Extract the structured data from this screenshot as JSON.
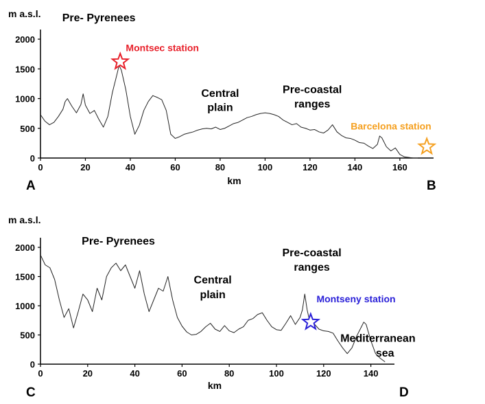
{
  "colors": {
    "montsec": "#e8202a",
    "barcelona": "#f5a020",
    "montseny": "#2a20d8",
    "line": "#222222"
  },
  "chart_data": [
    {
      "type": "line",
      "ylabel": "m a.s.l.",
      "xlabel": "km",
      "corner_left": "A",
      "corner_right": "B",
      "xlim": [
        0,
        175
      ],
      "ylim": [
        0,
        2000
      ],
      "x_ticks": [
        0,
        20,
        40,
        60,
        80,
        100,
        120,
        140,
        160
      ],
      "y_ticks": [
        0,
        500,
        1000,
        1500,
        2000
      ],
      "series": [
        {
          "x": [
            0,
            2,
            4,
            6,
            8,
            10,
            11,
            12,
            14,
            16,
            18,
            19,
            20,
            22,
            24,
            26,
            28,
            30,
            32,
            34,
            35,
            36,
            38,
            40,
            42,
            44,
            46,
            48,
            50,
            52,
            54,
            56,
            58,
            60,
            62,
            64,
            66,
            68,
            70,
            72,
            74,
            76,
            78,
            80,
            82,
            84,
            86,
            88,
            90,
            92,
            94,
            96,
            98,
            100,
            102,
            104,
            106,
            108,
            110,
            112,
            114,
            116,
            118,
            120,
            122,
            124,
            126,
            128,
            130,
            132,
            134,
            136,
            138,
            140,
            142,
            144,
            146,
            148,
            150,
            151,
            152,
            154,
            156,
            158,
            160,
            162,
            164,
            166,
            168
          ],
          "y": [
            730,
            620,
            560,
            600,
            700,
            820,
            950,
            1000,
            870,
            760,
            900,
            1080,
            890,
            750,
            800,
            650,
            520,
            700,
            1100,
            1400,
            1560,
            1480,
            1150,
            700,
            400,
            550,
            800,
            950,
            1050,
            1020,
            980,
            800,
            400,
            330,
            360,
            400,
            420,
            440,
            470,
            490,
            500,
            490,
            520,
            480,
            500,
            540,
            580,
            600,
            640,
            680,
            700,
            730,
            750,
            760,
            750,
            730,
            700,
            640,
            600,
            560,
            580,
            520,
            500,
            470,
            480,
            440,
            420,
            470,
            560,
            440,
            380,
            340,
            330,
            300,
            260,
            250,
            200,
            160,
            230,
            370,
            340,
            190,
            120,
            170,
            60,
            20,
            10,
            0,
            0
          ]
        }
      ],
      "annotations": [
        {
          "text": "Pre- Pyrenees",
          "x": 26,
          "y": 2300
        },
        {
          "text": "Central",
          "x": 80,
          "y": 1030
        },
        {
          "text": "plain",
          "x": 80,
          "y": 790
        },
        {
          "text": "Pre-coastal",
          "x": 121,
          "y": 1090
        },
        {
          "text": "ranges",
          "x": 121,
          "y": 850
        }
      ],
      "stations": [
        {
          "name": "Montsec station",
          "x": 35.5,
          "y": 1620,
          "color_key": "montsec",
          "label_x": 38,
          "label_y": 1800,
          "anchor": "start"
        },
        {
          "name": "Barcelona station",
          "x": 172,
          "y": 190,
          "color_key": "barcelona",
          "label_x": 174,
          "label_y": 480,
          "anchor": "end"
        }
      ]
    },
    {
      "type": "line",
      "ylabel": "m a.s.l.",
      "xlabel": "km",
      "corner_left": "C",
      "corner_right": "D",
      "xlim": [
        0,
        150
      ],
      "ylim": [
        0,
        2000
      ],
      "x_ticks": [
        0,
        20,
        40,
        60,
        80,
        100,
        120,
        140
      ],
      "y_ticks": [
        0,
        500,
        1000,
        1500,
        2000
      ],
      "series": [
        {
          "x": [
            0,
            2,
            4,
            6,
            8,
            10,
            12,
            14,
            16,
            18,
            20,
            22,
            24,
            26,
            28,
            30,
            32,
            34,
            36,
            38,
            40,
            42,
            44,
            46,
            48,
            50,
            52,
            54,
            56,
            58,
            60,
            62,
            64,
            66,
            68,
            70,
            72,
            74,
            76,
            78,
            80,
            82,
            84,
            86,
            88,
            90,
            92,
            94,
            96,
            98,
            100,
            102,
            104,
            106,
            108,
            110,
            111,
            112,
            113,
            114,
            116,
            118,
            120,
            122,
            124,
            126,
            128,
            130,
            132,
            134,
            136,
            137,
            138,
            140,
            142,
            144,
            146
          ],
          "y": [
            1870,
            1700,
            1650,
            1450,
            1100,
            800,
            950,
            620,
            900,
            1200,
            1100,
            900,
            1300,
            1100,
            1500,
            1650,
            1730,
            1600,
            1700,
            1500,
            1300,
            1600,
            1200,
            900,
            1100,
            1300,
            1250,
            1500,
            1100,
            800,
            650,
            550,
            500,
            510,
            560,
            640,
            700,
            600,
            560,
            660,
            570,
            540,
            600,
            640,
            750,
            780,
            850,
            880,
            750,
            640,
            590,
            580,
            700,
            830,
            680,
            800,
            930,
            1200,
            930,
            750,
            690,
            600,
            570,
            560,
            530,
            400,
            280,
            180,
            280,
            480,
            640,
            720,
            680,
            400,
            180,
            100,
            40
          ]
        }
      ],
      "annotations": [
        {
          "text": "Pre- Pyrenees",
          "x": 33,
          "y": 2050
        },
        {
          "text": "Pre-coastal",
          "x": 115,
          "y": 1850
        },
        {
          "text": "ranges",
          "x": 115,
          "y": 1600
        },
        {
          "text": "Central",
          "x": 73,
          "y": 1380
        },
        {
          "text": "plain",
          "x": 73,
          "y": 1130
        },
        {
          "text": "Mediterranean",
          "x": 143,
          "y": 380
        },
        {
          "text": "sea",
          "x": 146,
          "y": 130
        }
      ],
      "stations": [
        {
          "name": "Montseny station",
          "x": 114.5,
          "y": 720,
          "color_key": "montseny",
          "label_x": 117,
          "label_y": 1060,
          "anchor": "start"
        }
      ]
    }
  ]
}
